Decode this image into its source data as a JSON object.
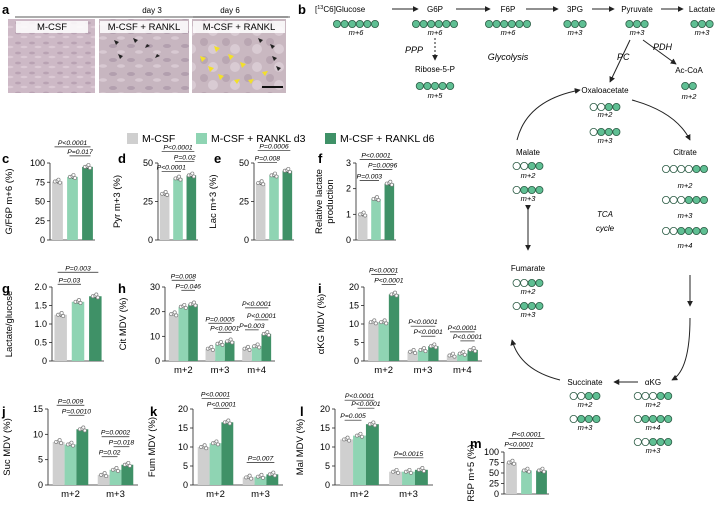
{
  "panel_letters": {
    "a": "a",
    "b": "b",
    "c": "c",
    "d": "d",
    "e": "e",
    "f": "f",
    "g": "g",
    "h": "h",
    "i": "i",
    "j": "j",
    "k": "k",
    "l": "l",
    "m": "m"
  },
  "micrographs": {
    "day3": "day 3",
    "day6": "day 6",
    "labels": [
      "M-CSF",
      "M-CSF + RANKL",
      "M-CSF + RANKL"
    ]
  },
  "legend": [
    "M-CSF",
    "M-CSF + RANKL d3",
    "M-CSF + RANKL d6"
  ],
  "colors": {
    "mcsf": "#cfcfcf",
    "rankl_d3": "#8fd4b3",
    "rankl_d6": "#3f9167",
    "dot": "#808080",
    "open": "#ffffff"
  },
  "pathway": {
    "glucose_prefix": "[",
    "glucose_sup": "13",
    "glucose_name": "C6]Glucose",
    "glucose_sub": "6",
    "g6p": "G6P",
    "f6p": "F6P",
    "pg3": "3PG",
    "pyruvate": "Pyruvate",
    "lactate": "Lactate",
    "ribose": "Ribose-5-P",
    "ppp": "PPP",
    "glycolysis": "Glycolysis",
    "pc": "PC",
    "pdh": "PDH",
    "accoa": "Ac-CoA",
    "oaa": "Oxaloacetate",
    "citrate": "Citrate",
    "akg": "αKG",
    "succinate": "Succinate",
    "fumarate": "Fumarate",
    "malate": "Malate",
    "tca1": "TCA",
    "tca2": "cycle",
    "m6": "m+6",
    "m5": "m+5",
    "m3": "m+3",
    "m2": "m+2",
    "m4": "m+4"
  },
  "chart_data": [
    {
      "id": "c",
      "type": "bar",
      "ylabel": "G/F6P m+6 (%)",
      "ylim": [
        0,
        100
      ],
      "yticks": [
        0,
        25,
        50,
        75,
        100
      ],
      "categories": [
        "M-CSF",
        "M-CSF + RANKL d3",
        "M-CSF + RANKL d6"
      ],
      "values": [
        76,
        82,
        95
      ],
      "pvalues": [
        "P<0.0001",
        "P=0.017"
      ]
    },
    {
      "id": "d",
      "type": "bar",
      "ylabel": "Pyr m+3 (%)",
      "ylim": [
        0,
        50
      ],
      "yticks": [
        0,
        25,
        50
      ],
      "categories": [
        "M-CSF",
        "M-CSF + RANKL d3",
        "M-CSF + RANKL d6"
      ],
      "values": [
        30,
        40,
        42
      ],
      "pvalues": [
        "P<0.0001",
        "P=0.02",
        "P<0.0001"
      ]
    },
    {
      "id": "e",
      "type": "bar",
      "ylabel": "Lac m+3 (%)",
      "ylim": [
        0,
        50
      ],
      "yticks": [
        0,
        25,
        50
      ],
      "categories": [
        "M-CSF",
        "M-CSF + RANKL d3",
        "M-CSF + RANKL d6"
      ],
      "values": [
        37,
        42,
        45
      ],
      "pvalues": [
        "P=0.0006",
        "P=0.008"
      ]
    },
    {
      "id": "f",
      "type": "bar",
      "ylabel": "Relative lactate production",
      "ylim": [
        0,
        3
      ],
      "yticks": [
        0,
        1,
        2,
        3
      ],
      "categories": [
        "M-CSF",
        "M-CSF + RANKL d3",
        "M-CSF + RANKL d6"
      ],
      "values": [
        1.0,
        1.6,
        2.2
      ],
      "pvalues": [
        "P<0.0001",
        "P=0.0096",
        "P=0.003"
      ]
    },
    {
      "id": "g",
      "type": "bar",
      "ylabel": "Lactate/glucose",
      "ylim": [
        0,
        2
      ],
      "yticks": [
        0,
        0.5,
        1.0,
        1.5,
        2.0
      ],
      "categories": [
        "M-CSF",
        "M-CSF + RANKL d3",
        "M-CSF + RANKL d6"
      ],
      "values": [
        1.25,
        1.6,
        1.75
      ],
      "pvalues": [
        "P=0.003",
        "P=0.03"
      ]
    },
    {
      "id": "h",
      "type": "bar",
      "ylabel": "Cit MDV (%)",
      "ylim": [
        0,
        30
      ],
      "yticks": [
        0,
        10,
        20,
        30
      ],
      "categories": [
        "m+2",
        "m+3",
        "m+4"
      ],
      "series": [
        {
          "name": "M-CSF",
          "values": [
            19,
            5,
            5
          ]
        },
        {
          "name": "M-CSF + RANKL d3",
          "values": [
            22,
            7,
            6
          ]
        },
        {
          "name": "M-CSF + RANKL d6",
          "values": [
            23,
            8,
            11
          ]
        }
      ],
      "pvalues": [
        "P=0.008",
        "P=0.046",
        "P=0.0005",
        "P<0.0001",
        "P<0.0001",
        "P<0.0001",
        "P=0.003"
      ]
    },
    {
      "id": "i",
      "type": "bar",
      "ylabel": "αKG MDV (%)",
      "ylim": [
        0,
        20
      ],
      "yticks": [
        0,
        5,
        10,
        15,
        20
      ],
      "categories": [
        "m+2",
        "m+3",
        "m+4"
      ],
      "series": [
        {
          "name": "M-CSF",
          "values": [
            10.5,
            2.5,
            1.5
          ]
        },
        {
          "name": "M-CSF + RANKL d3",
          "values": [
            10.5,
            3,
            2
          ]
        },
        {
          "name": "M-CSF + RANKL d6",
          "values": [
            18,
            4,
            3
          ]
        }
      ],
      "pvalues": [
        "P<0.0001",
        "P<0.0001",
        "P<0.0001",
        "P<0.0001",
        "P<0.0001",
        "P<0.0001"
      ]
    },
    {
      "id": "j",
      "type": "bar",
      "ylabel": "Suc MDV (%)",
      "ylim": [
        0,
        15
      ],
      "yticks": [
        0,
        5,
        10,
        15
      ],
      "categories": [
        "m+2",
        "m+3"
      ],
      "series": [
        {
          "name": "M-CSF",
          "values": [
            8.5,
            2
          ]
        },
        {
          "name": "M-CSF + RANKL d3",
          "values": [
            8,
            3
          ]
        },
        {
          "name": "M-CSF + RANKL d6",
          "values": [
            11,
            4
          ]
        }
      ],
      "pvalues": [
        "P=0.009",
        "P=0.0010",
        "P=0.0002",
        "P=0.018",
        "P=0.02"
      ]
    },
    {
      "id": "k",
      "type": "bar",
      "ylabel": "Fum MDV (%)",
      "ylim": [
        0,
        20
      ],
      "yticks": [
        0,
        5,
        10,
        15,
        20
      ],
      "categories": [
        "m+2",
        "m+3"
      ],
      "series": [
        {
          "name": "M-CSF",
          "values": [
            10,
            2
          ]
        },
        {
          "name": "M-CSF + RANKL d3",
          "values": [
            11,
            2.2
          ]
        },
        {
          "name": "M-CSF + RANKL d6",
          "values": [
            16.5,
            2.8
          ]
        }
      ],
      "pvalues": [
        "P<0.0001",
        "P<0.0001",
        "P=0.007"
      ]
    },
    {
      "id": "l",
      "type": "bar",
      "ylabel": "Mal MDV (%)",
      "ylim": [
        0,
        20
      ],
      "yticks": [
        0,
        5,
        10,
        15,
        20
      ],
      "categories": [
        "m+2",
        "m+3"
      ],
      "series": [
        {
          "name": "M-CSF",
          "values": [
            12,
            3.5
          ]
        },
        {
          "name": "M-CSF + RANKL d3",
          "values": [
            13,
            3.5
          ]
        },
        {
          "name": "M-CSF + RANKL d6",
          "values": [
            16,
            4
          ]
        }
      ],
      "pvalues": [
        "P<0.0001",
        "P<0.0001",
        "P=0.005",
        "P=0.0015"
      ]
    },
    {
      "id": "m",
      "type": "bar",
      "ylabel": "R5P m+5 (%)",
      "ylim": [
        0,
        100
      ],
      "yticks": [
        0,
        25,
        50,
        75,
        100
      ],
      "categories": [
        "M-CSF",
        "M-CSF + RANKL d3",
        "M-CSF + RANKL d6"
      ],
      "values": [
        75,
        56,
        56
      ],
      "pvalues": [
        "P<0.0001",
        "P<0.0001"
      ]
    }
  ]
}
